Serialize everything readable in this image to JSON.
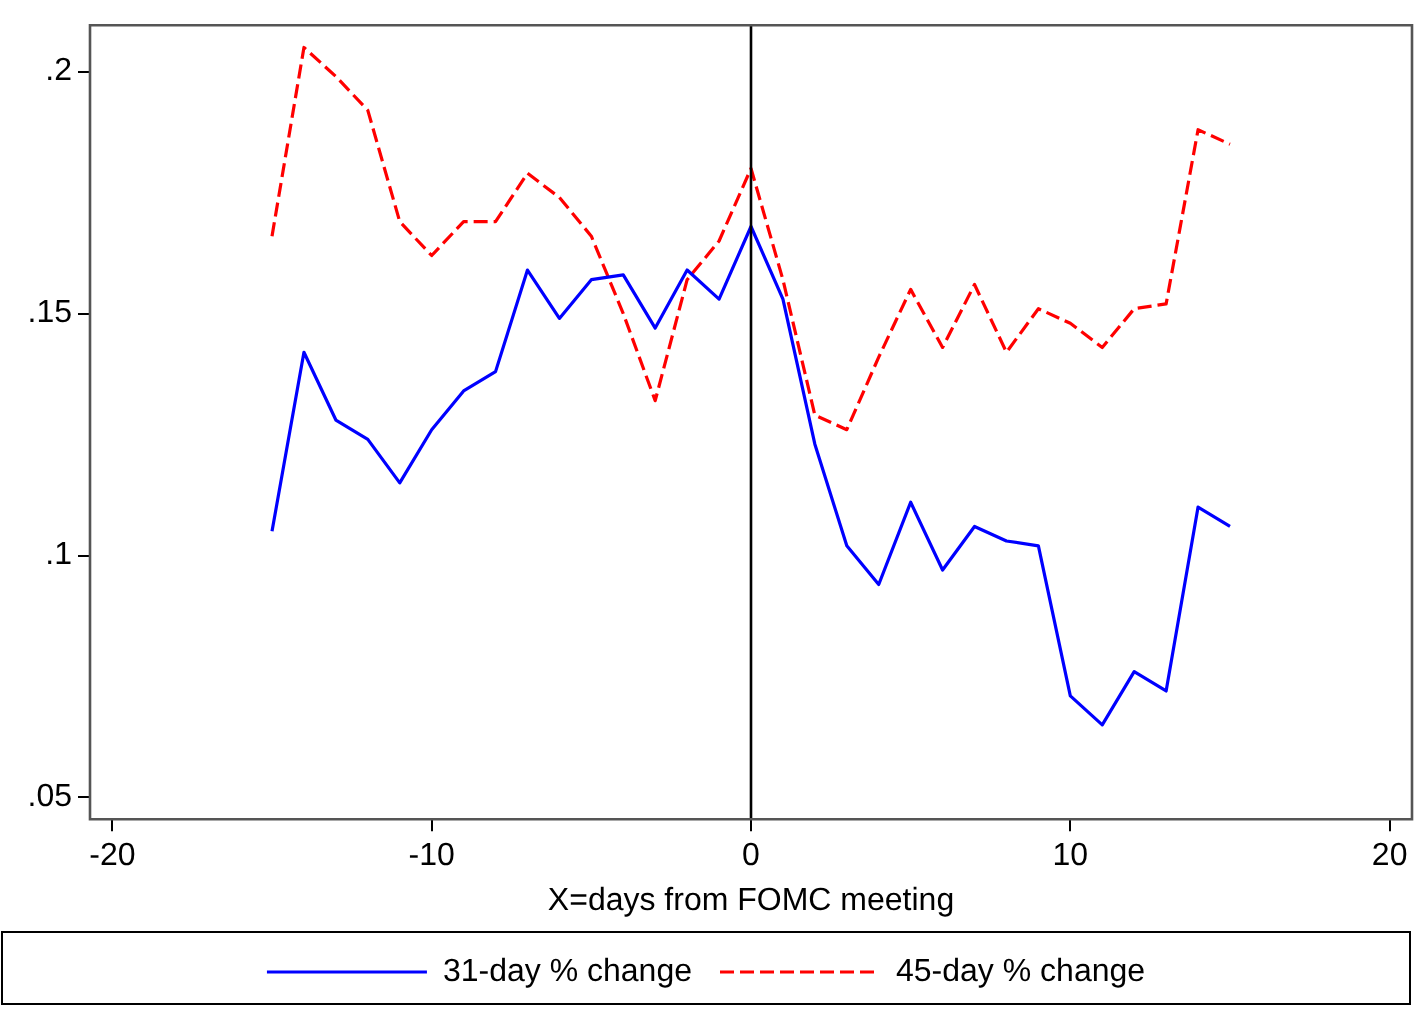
{
  "chart_data": {
    "type": "line",
    "xlabel": "X=days from FOMC meeting",
    "x": [
      -15,
      -14,
      -13,
      -12,
      -11,
      -10,
      -9,
      -8,
      -7,
      -6,
      -5,
      -4,
      -3,
      -2,
      -1,
      0,
      1,
      2,
      3,
      4,
      5,
      6,
      7,
      8,
      9,
      10,
      11,
      12,
      13,
      14,
      15
    ],
    "series": [
      {
        "name": "31-day % change",
        "color": "#0000ff",
        "line_style": "solid",
        "values": [
          0.105,
          0.142,
          0.128,
          0.124,
          0.115,
          0.126,
          0.134,
          0.138,
          0.159,
          0.149,
          0.157,
          0.158,
          0.147,
          0.159,
          0.153,
          0.168,
          0.153,
          0.123,
          0.102,
          0.094,
          0.111,
          0.097,
          0.106,
          0.103,
          0.102,
          0.071,
          0.065,
          0.076,
          0.072,
          0.11,
          0.106
        ]
      },
      {
        "name": "45-day % change",
        "color": "#ff0000",
        "line_style": "dashed",
        "values": [
          0.166,
          0.205,
          0.199,
          0.192,
          0.169,
          0.162,
          0.169,
          0.169,
          0.179,
          0.174,
          0.166,
          0.15,
          0.132,
          0.157,
          0.165,
          0.18,
          0.157,
          0.129,
          0.126,
          0.141,
          0.155,
          0.143,
          0.156,
          0.142,
          0.151,
          0.148,
          0.143,
          0.151,
          0.152,
          0.188,
          0.185
        ]
      }
    ],
    "xlim": [
      -20.7,
      20.7
    ],
    "xticks": [
      -20,
      -10,
      0,
      10,
      20
    ],
    "ylim": [
      0.0455,
      0.2096
    ],
    "yticks": [
      {
        "value": 0.05,
        "label": ".05"
      },
      {
        "value": 0.1,
        "label": ".1"
      },
      {
        "value": 0.15,
        "label": ".15"
      },
      {
        "value": 0.2,
        "label": ".2"
      }
    ],
    "ref_lines": [
      {
        "axis": "x",
        "value": 0,
        "color": "#000000"
      }
    ],
    "grid": false,
    "legend": "bottom",
    "marker": "none"
  }
}
